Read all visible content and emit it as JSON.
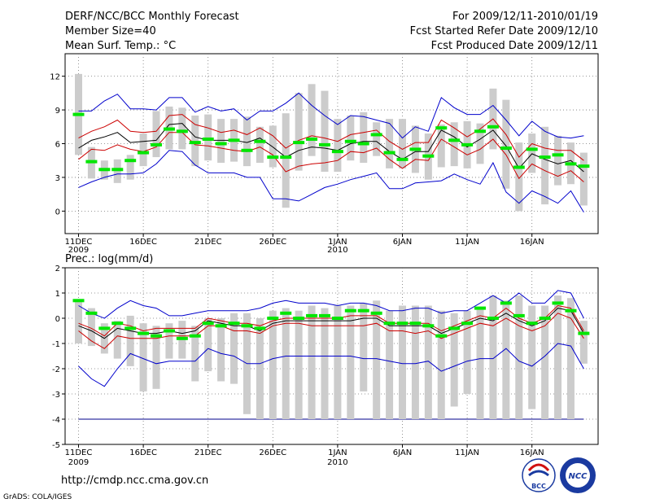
{
  "header": {
    "title": "DERF/NCC/BCC Monthly Forecast",
    "member_size": "Member Size=40",
    "variable": "Mean Surf. Temp.: °C",
    "period": "For 2009/12/11-2010/01/19",
    "refer_date": "Fcst Started Refer Date 2009/12/10",
    "produced_date": "Fcst Produced Date 2009/12/11"
  },
  "footer": {
    "url": "http://cmdp.ncc.cma.gov.cn",
    "credit": "GrADS: COLA/IGES",
    "logo_bcc": "BCC",
    "logo_ncc": "NCC"
  },
  "colors": {
    "box": "#cccccc",
    "median": "#00e600",
    "mean": "#000000",
    "inner": "#cc0000",
    "outer": "#0000cc",
    "grid": "#777777"
  },
  "chart_data": [
    {
      "type": "box",
      "title": "Mean Surf. Temp.: °C",
      "ylim": [
        -2,
        14
      ],
      "yticks": [
        0,
        3,
        6,
        9,
        12
      ],
      "x_tick_labels": [
        "11DEC",
        "16DEC",
        "21DEC",
        "26DEC",
        "1JAN",
        "6JAN",
        "11JAN",
        "16JAN"
      ],
      "x_year_labels": [
        {
          "after": "11DEC",
          "label": "2009"
        },
        {
          "after": "1JAN",
          "label": "2010"
        }
      ],
      "box_low": [
        5,
        2.9,
        2.8,
        2.5,
        2.8,
        4,
        4.8,
        5.5,
        5.5,
        4,
        4.5,
        4.3,
        4.4,
        4,
        4.3,
        3.9,
        0.3,
        3.6,
        4.9,
        3.5,
        3.5,
        4.5,
        4.3,
        4.9,
        3.8,
        3.8,
        3.4,
        2.8,
        3.9,
        4,
        3.8,
        4.2,
        5.5,
        2,
        0,
        3.4,
        0.6,
        2.3,
        2.4,
        0.5
      ],
      "box_high": [
        12.2,
        5.7,
        4.5,
        4.6,
        5,
        6.9,
        8.9,
        9.3,
        9.2,
        8.5,
        8.6,
        8.2,
        8.2,
        8.4,
        7.5,
        7.6,
        8.7,
        10.5,
        11.3,
        10.7,
        8.2,
        8.5,
        8.8,
        7.9,
        8.2,
        8.2,
        7.6,
        6.9,
        7.7,
        7.9,
        8,
        7.8,
        10.9,
        9.9,
        6.1,
        6.9,
        7.5,
        6.7,
        6.1,
        5.2
      ],
      "median": [
        8.6,
        4.4,
        3.7,
        3.7,
        4.5,
        5.2,
        5.9,
        7.3,
        7.1,
        6.1,
        6.4,
        6,
        6.3,
        5.4,
        6.2,
        4.8,
        4.8,
        6.1,
        6.4,
        5.9,
        5.3,
        6.2,
        6,
        6.8,
        5.2,
        4.6,
        5.5,
        4.9,
        7.4,
        6.3,
        5.9,
        7.1,
        7.5,
        5.6,
        3.9,
        5.5,
        4.8,
        5,
        4.2,
        4
      ],
      "mean": [
        5.6,
        6.3,
        6.6,
        7,
        6.1,
        6.2,
        6.3,
        7.7,
        7.8,
        6.6,
        6.3,
        6.3,
        6.3,
        6.1,
        6.5,
        5.7,
        4.8,
        5.4,
        5.7,
        5.6,
        5.4,
        6,
        6.2,
        6.2,
        5.3,
        4.6,
        5.3,
        5.3,
        7.2,
        6.6,
        5.7,
        6.4,
        7.2,
        5.8,
        3.8,
        5.1,
        4.6,
        4.2,
        4.5,
        3.5
      ],
      "inner_upper": [
        6.5,
        7.1,
        7.5,
        8.1,
        7.1,
        7,
        7.1,
        8.5,
        8.6,
        7.7,
        7.4,
        7,
        7.2,
        6.8,
        7.4,
        6.7,
        5.6,
        6.3,
        6.7,
        6.5,
        6.2,
        6.8,
        7,
        7.2,
        6.2,
        5.5,
        6.1,
        6.1,
        8.1,
        7.4,
        6.6,
        7.3,
        8.2,
        6.8,
        4.8,
        6,
        5.6,
        5.4,
        5.4,
        4.5
      ],
      "inner_lower": [
        4.6,
        5.5,
        5.4,
        5.9,
        5.5,
        5.3,
        5.7,
        7,
        7,
        5.9,
        5.8,
        5.6,
        5.4,
        5.3,
        5.7,
        5,
        3.5,
        4,
        4.2,
        4.3,
        4.5,
        5.3,
        5.2,
        5.6,
        4.6,
        3.8,
        4.6,
        4.5,
        6.4,
        5.7,
        5,
        5.5,
        6.4,
        5,
        2.9,
        4.2,
        3.6,
        3.1,
        3.6,
        2.6
      ],
      "outer_upper": [
        8.9,
        8.9,
        9.8,
        10.4,
        9.1,
        9.1,
        9,
        10.1,
        10.1,
        8.8,
        9.3,
        8.9,
        9.1,
        8.1,
        8.9,
        8.9,
        9.6,
        10.5,
        9.4,
        8.5,
        7.7,
        8.5,
        8.4,
        8.1,
        7.8,
        6.5,
        7.5,
        7.1,
        10.1,
        9.2,
        8.6,
        8.6,
        9.4,
        8.1,
        6.7,
        8,
        7.1,
        6.6,
        6.5,
        6.7
      ],
      "outer_lower": [
        2.1,
        2.6,
        3,
        3.3,
        3.3,
        3.4,
        4.2,
        5.4,
        5.3,
        4.1,
        3.4,
        3.4,
        3.4,
        3,
        3,
        1.1,
        1.1,
        0.9,
        1.5,
        2.1,
        2.4,
        2.8,
        3.1,
        3.4,
        2,
        2,
        2.5,
        2.6,
        2.7,
        3.3,
        2.8,
        2.4,
        4.3,
        1.7,
        0.7,
        1.8,
        1.3,
        0.7,
        1.8,
        -0.1
      ]
    },
    {
      "type": "box",
      "title": "Prec.: log(mm/d)",
      "ylim": [
        -5,
        2
      ],
      "yticks": [
        -5,
        -4,
        -3,
        -2,
        -1,
        0,
        1,
        2
      ],
      "x_tick_labels": [
        "11DEC",
        "16DEC",
        "21DEC",
        "26DEC",
        "1JAN",
        "6JAN",
        "11JAN",
        "16JAN"
      ],
      "x_year_labels": [
        {
          "after": "11DEC",
          "label": "2009"
        },
        {
          "after": "1JAN",
          "label": "2010"
        }
      ],
      "box_low": [
        -1,
        -1.1,
        -1.4,
        -1.6,
        -1.9,
        -2.9,
        -2.8,
        -1.6,
        -1.6,
        -2.5,
        -2.1,
        -2.5,
        -2.6,
        -3.8,
        -4,
        -4,
        -4,
        -4,
        -4,
        -4,
        -4,
        -4,
        -2.9,
        -4,
        -4,
        -4,
        -4,
        -4,
        -4,
        -3.5,
        -3,
        -4,
        -4,
        -4,
        -4,
        -3.6,
        -4,
        -4,
        -4,
        -1.8
      ],
      "box_high": [
        0.7,
        0.4,
        -0.2,
        -0.1,
        0.1,
        -0.2,
        -0.3,
        -0.2,
        -0.1,
        -0.3,
        0,
        0,
        0.2,
        0.2,
        0,
        0.3,
        0.4,
        0.3,
        0.5,
        0.4,
        0.5,
        0.5,
        0.6,
        0.7,
        0.3,
        0.5,
        0.5,
        0.5,
        0.3,
        0.2,
        0.3,
        0.4,
        0.9,
        0.7,
        0.9,
        0.5,
        0.5,
        0.9,
        0.8,
        -0.1
      ],
      "median": [
        0.7,
        0.2,
        -0.4,
        -0.2,
        -0.4,
        -0.6,
        -0.7,
        -0.5,
        -0.8,
        -0.7,
        -0.2,
        -0.3,
        -0.2,
        -0.3,
        -0.4,
        0,
        0.2,
        0,
        0.1,
        0.1,
        0,
        0.3,
        0.3,
        0.2,
        -0.2,
        -0.2,
        -0.2,
        -0.3,
        -0.7,
        -0.4,
        -0.2,
        0.4,
        0,
        0.6,
        0.1,
        -0.2,
        0,
        0.6,
        0.3,
        -0.6
      ],
      "mean": [
        -0.3,
        -0.5,
        -0.8,
        -0.4,
        -0.5,
        -0.6,
        -0.6,
        -0.5,
        -0.6,
        -0.5,
        -0.1,
        -0.2,
        -0.3,
        -0.3,
        -0.5,
        -0.2,
        -0.1,
        -0.1,
        -0.1,
        -0.1,
        -0.1,
        -0.1,
        0,
        0,
        -0.3,
        -0.3,
        -0.3,
        -0.3,
        -0.6,
        -0.4,
        -0.2,
        0,
        -0.1,
        0.2,
        -0.1,
        -0.3,
        -0.1,
        0.4,
        0.3,
        -0.6
      ],
      "inner_upper": [
        -0.2,
        -0.4,
        -0.7,
        -0.2,
        -0.3,
        -0.5,
        -0.4,
        -0.4,
        -0.4,
        -0.4,
        0,
        -0.1,
        -0.2,
        -0.2,
        -0.3,
        -0.1,
        0,
        0,
        0,
        0,
        0,
        0.1,
        0.1,
        0.1,
        -0.2,
        -0.2,
        -0.2,
        -0.2,
        -0.5,
        -0.3,
        -0.1,
        0.1,
        0,
        0.4,
        0,
        -0.2,
        0,
        0.5,
        0.4,
        -0.5
      ],
      "inner_lower": [
        -0.5,
        -0.9,
        -1.2,
        -0.7,
        -0.8,
        -0.8,
        -0.8,
        -0.7,
        -0.7,
        -0.7,
        -0.3,
        -0.3,
        -0.5,
        -0.5,
        -0.6,
        -0.3,
        -0.2,
        -0.2,
        -0.3,
        -0.3,
        -0.3,
        -0.3,
        -0.3,
        -0.2,
        -0.5,
        -0.5,
        -0.6,
        -0.5,
        -0.8,
        -0.6,
        -0.4,
        -0.2,
        -0.3,
        0,
        -0.3,
        -0.5,
        -0.3,
        0.2,
        0,
        -0.8
      ],
      "outer_upper": [
        0.5,
        0.2,
        0,
        0.4,
        0.7,
        0.5,
        0.4,
        0.1,
        0.1,
        0.2,
        0.3,
        0.3,
        0.3,
        0.3,
        0.4,
        0.6,
        0.7,
        0.6,
        0.6,
        0.6,
        0.5,
        0.6,
        0.6,
        0.5,
        0.3,
        0.3,
        0.4,
        0.4,
        0.2,
        0.3,
        0.3,
        0.6,
        0.9,
        0.6,
        1,
        0.6,
        0.6,
        1.1,
        1,
        0
      ],
      "outer_lower": [
        -1.9,
        -2.4,
        -2.7,
        -2,
        -1.4,
        -1.6,
        -1.8,
        -1.7,
        -1.7,
        -1.7,
        -1.2,
        -1.4,
        -1.5,
        -1.8,
        -1.8,
        -1.6,
        -1.5,
        -1.5,
        -1.5,
        -1.5,
        -1.5,
        -1.5,
        -1.6,
        -1.6,
        -1.7,
        -1.8,
        -1.8,
        -1.7,
        -2.1,
        -1.9,
        -1.7,
        -1.6,
        -1.6,
        -1.2,
        -1.7,
        -1.9,
        -1.5,
        -1,
        -1.1,
        -2
      ],
      "baseline": -4
    }
  ]
}
